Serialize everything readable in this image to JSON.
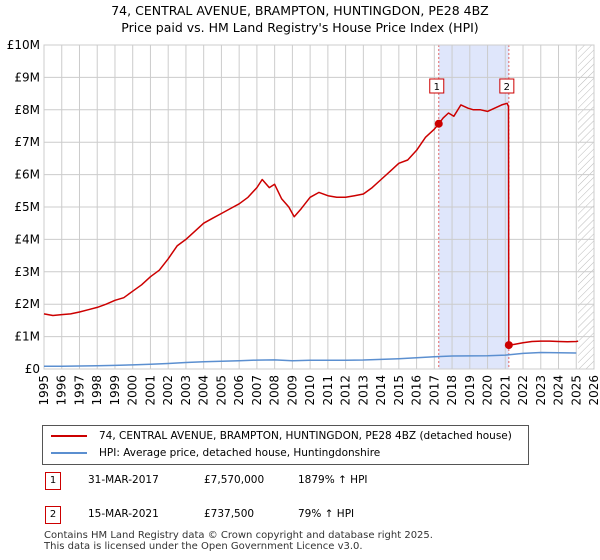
{
  "title_line1": "74, CENTRAL AVENUE, BRAMPTON, HUNTINGDON, PE28 4BZ",
  "title_line2": "Price paid vs. HM Land Registry's House Price Index (HPI)",
  "colors": {
    "price": "#cc0000",
    "hpi": "#5b8fd0",
    "shade": "#dfe6fb",
    "grid": "#cccccc",
    "marker_border": "#cc0000"
  },
  "chart_data": {
    "type": "line",
    "x_ticks": [
      "1995",
      "1996",
      "1997",
      "1998",
      "1999",
      "2000",
      "2001",
      "2002",
      "2003",
      "2004",
      "2005",
      "2006",
      "2007",
      "2008",
      "2009",
      "2010",
      "2011",
      "2012",
      "2013",
      "2014",
      "2015",
      "2016",
      "2017",
      "2018",
      "2019",
      "2020",
      "2021",
      "2022",
      "2023",
      "2024",
      "2025",
      "2026"
    ],
    "y_ticks": [
      "£0",
      "£1M",
      "£2M",
      "£3M",
      "£4M",
      "£5M",
      "£6M",
      "£7M",
      "£8M",
      "£9M",
      "£10M"
    ],
    "xlim": [
      1995,
      2026
    ],
    "ylim": [
      0,
      10000000
    ],
    "series": [
      {
        "name": "74, CENTRAL AVENUE, BRAMPTON, HUNTINGDON, PE28 4BZ (detached house)",
        "points": [
          [
            1995.0,
            1700000
          ],
          [
            1995.5,
            1650000
          ],
          [
            1996.0,
            1680000
          ],
          [
            1996.5,
            1700000
          ],
          [
            1997.0,
            1760000
          ],
          [
            1997.5,
            1830000
          ],
          [
            1998.0,
            1900000
          ],
          [
            1998.5,
            2000000
          ],
          [
            1999.0,
            2120000
          ],
          [
            1999.5,
            2200000
          ],
          [
            2000.0,
            2400000
          ],
          [
            2000.5,
            2600000
          ],
          [
            2001.0,
            2850000
          ],
          [
            2001.5,
            3050000
          ],
          [
            2002.0,
            3400000
          ],
          [
            2002.5,
            3800000
          ],
          [
            2003.0,
            4000000
          ],
          [
            2003.5,
            4250000
          ],
          [
            2004.0,
            4500000
          ],
          [
            2004.5,
            4650000
          ],
          [
            2005.0,
            4800000
          ],
          [
            2005.5,
            4950000
          ],
          [
            2006.0,
            5100000
          ],
          [
            2006.5,
            5300000
          ],
          [
            2007.0,
            5600000
          ],
          [
            2007.3,
            5850000
          ],
          [
            2007.7,
            5600000
          ],
          [
            2008.0,
            5700000
          ],
          [
            2008.4,
            5250000
          ],
          [
            2008.8,
            5000000
          ],
          [
            2009.1,
            4700000
          ],
          [
            2009.5,
            4950000
          ],
          [
            2010.0,
            5300000
          ],
          [
            2010.5,
            5450000
          ],
          [
            2011.0,
            5350000
          ],
          [
            2011.5,
            5300000
          ],
          [
            2012.0,
            5300000
          ],
          [
            2012.5,
            5350000
          ],
          [
            2013.0,
            5400000
          ],
          [
            2013.5,
            5600000
          ],
          [
            2014.0,
            5850000
          ],
          [
            2014.5,
            6100000
          ],
          [
            2015.0,
            6350000
          ],
          [
            2015.5,
            6450000
          ],
          [
            2016.0,
            6750000
          ],
          [
            2016.5,
            7150000
          ],
          [
            2017.0,
            7400000
          ],
          [
            2017.25,
            7570000
          ],
          [
            2017.5,
            7750000
          ],
          [
            2017.8,
            7900000
          ],
          [
            2018.1,
            7800000
          ],
          [
            2018.5,
            8150000
          ],
          [
            2018.9,
            8050000
          ],
          [
            2019.2,
            8000000
          ],
          [
            2019.6,
            8000000
          ],
          [
            2020.0,
            7950000
          ],
          [
            2020.4,
            8050000
          ],
          [
            2020.8,
            8150000
          ],
          [
            2021.1,
            8200000
          ],
          [
            2021.18,
            8100000
          ],
          [
            2021.2,
            737500
          ],
          [
            2021.5,
            760000
          ],
          [
            2022.0,
            810000
          ],
          [
            2022.5,
            850000
          ],
          [
            2023.0,
            860000
          ],
          [
            2023.5,
            860000
          ],
          [
            2024.0,
            850000
          ],
          [
            2024.5,
            840000
          ],
          [
            2025.0,
            850000
          ],
          [
            2025.1,
            860000
          ]
        ]
      },
      {
        "name": "HPI: Average price, detached house, Huntingdonshire",
        "points": [
          [
            1995.0,
            85000
          ],
          [
            1996.0,
            87000
          ],
          [
            1997.0,
            93000
          ],
          [
            1998.0,
            100000
          ],
          [
            1999.0,
            110000
          ],
          [
            2000.0,
            125000
          ],
          [
            2001.0,
            145000
          ],
          [
            2002.0,
            170000
          ],
          [
            2003.0,
            200000
          ],
          [
            2004.0,
            225000
          ],
          [
            2005.0,
            240000
          ],
          [
            2006.0,
            255000
          ],
          [
            2007.0,
            275000
          ],
          [
            2008.0,
            280000
          ],
          [
            2009.0,
            255000
          ],
          [
            2010.0,
            270000
          ],
          [
            2011.0,
            272000
          ],
          [
            2012.0,
            272000
          ],
          [
            2013.0,
            278000
          ],
          [
            2014.0,
            295000
          ],
          [
            2015.0,
            318000
          ],
          [
            2016.0,
            345000
          ],
          [
            2017.0,
            380000
          ],
          [
            2018.0,
            400000
          ],
          [
            2019.0,
            405000
          ],
          [
            2020.0,
            408000
          ],
          [
            2021.0,
            430000
          ],
          [
            2022.0,
            480000
          ],
          [
            2023.0,
            510000
          ],
          [
            2024.0,
            500000
          ],
          [
            2025.0,
            495000
          ]
        ]
      }
    ],
    "annotations": [
      {
        "label": "1",
        "x": 2017.25,
        "y": 7570000
      },
      {
        "label": "2",
        "x": 2021.2,
        "y": 737500
      }
    ],
    "shaded_range": [
      2017.25,
      2021.2
    ],
    "hatched_from": 2025.1
  },
  "legend": {
    "price_label": "74, CENTRAL AVENUE, BRAMPTON, HUNTINGDON, PE28 4BZ (detached house)",
    "hpi_label": "HPI: Average price, detached house, Huntingdonshire"
  },
  "transactions": [
    {
      "num": "1",
      "date": "31-MAR-2017",
      "price": "£7,570,000",
      "hpi": "1879% ↑ HPI"
    },
    {
      "num": "2",
      "date": "15-MAR-2021",
      "price": "£737,500",
      "hpi": "79% ↑ HPI"
    }
  ],
  "footer_line1": "Contains HM Land Registry data © Crown copyright and database right 2025.",
  "footer_line2": "This data is licensed under the Open Government Licence v3.0."
}
